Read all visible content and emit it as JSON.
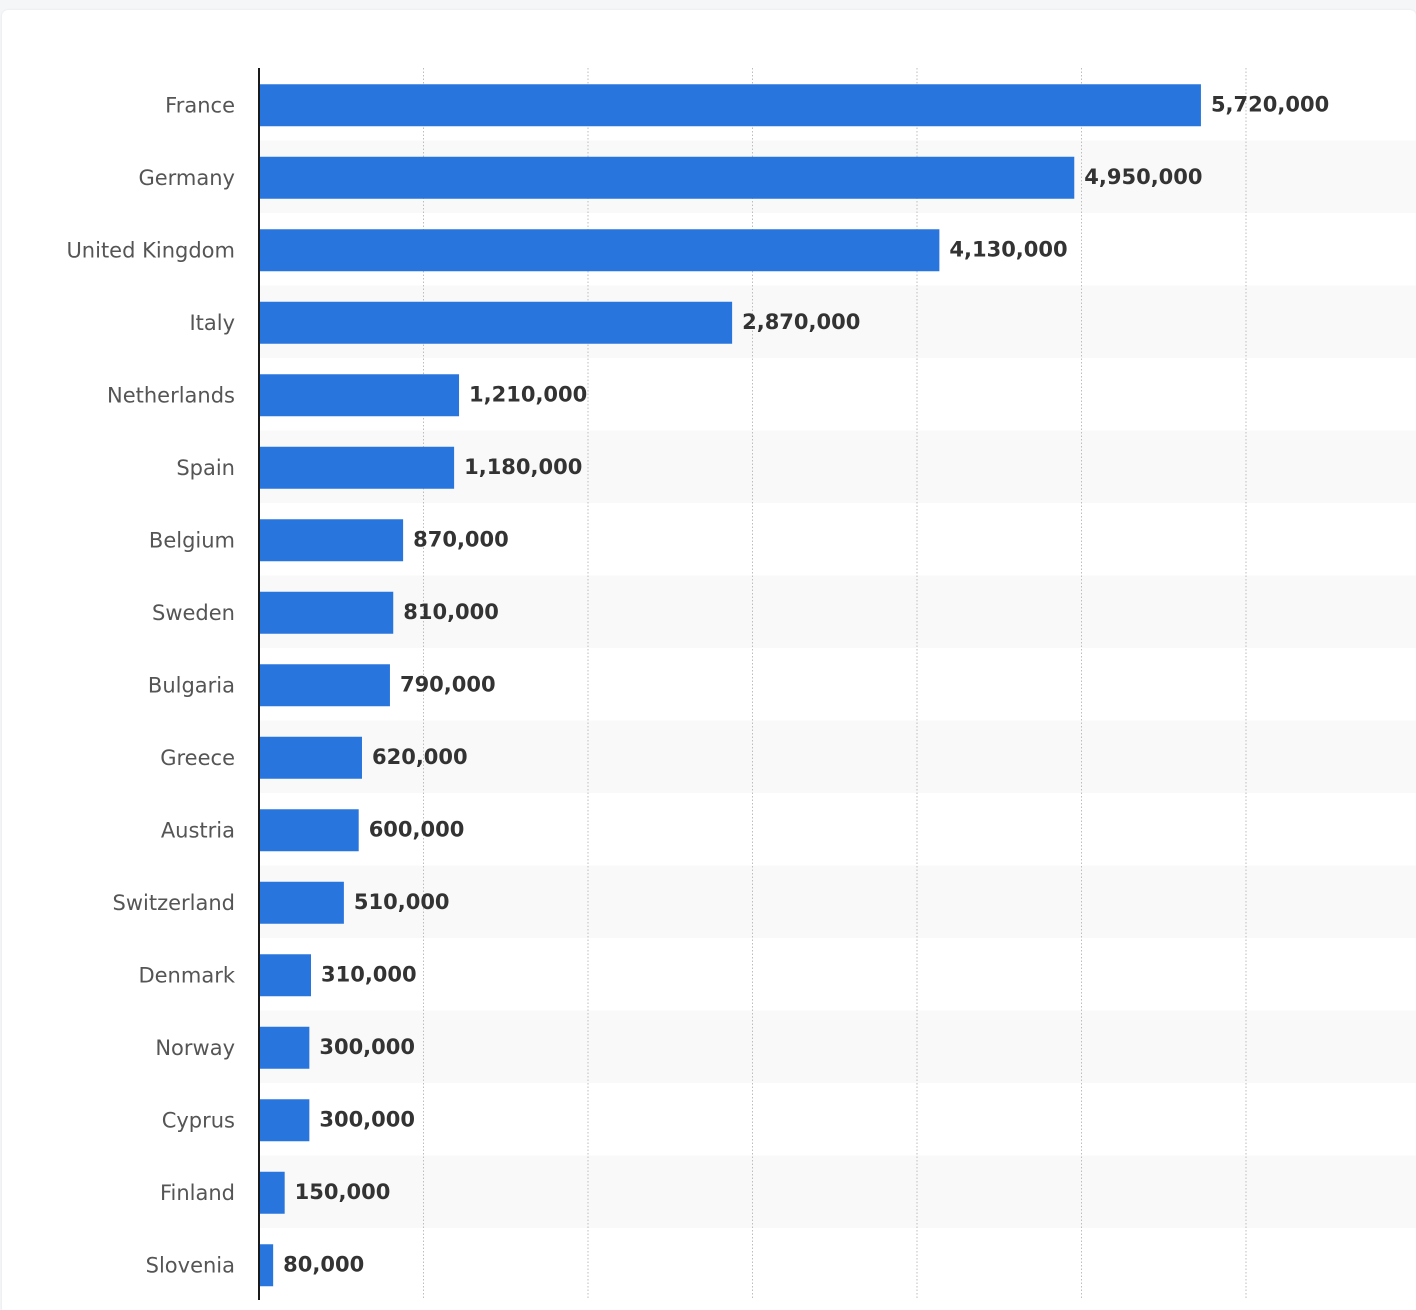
{
  "chart_data": {
    "type": "bar",
    "orientation": "horizontal",
    "categories": [
      "France",
      "Germany",
      "United Kingdom",
      "Italy",
      "Netherlands",
      "Spain",
      "Belgium",
      "Sweden",
      "Bulgaria",
      "Greece",
      "Austria",
      "Switzerland",
      "Denmark",
      "Norway",
      "Cyprus",
      "Finland",
      "Slovenia"
    ],
    "values": [
      5720000,
      4950000,
      4130000,
      2870000,
      1210000,
      1180000,
      870000,
      810000,
      790000,
      620000,
      600000,
      510000,
      310000,
      300000,
      300000,
      150000,
      80000
    ],
    "value_labels": [
      "5,720,000",
      "4,950,000",
      "4,130,000",
      "2,870,000",
      "1,210,000",
      "1,180,000",
      "870,000",
      "810,000",
      "790,000",
      "620,000",
      "600,000",
      "510,000",
      "310,000",
      "300,000",
      "300,000",
      "150,000",
      "80,000"
    ],
    "xlim": [
      0,
      7000000
    ],
    "grid_step": 1000000,
    "grid": true,
    "bar_color": "#2876dd",
    "band_color": "#f9f9f9",
    "title": "",
    "xlabel": "",
    "ylabel": ""
  }
}
